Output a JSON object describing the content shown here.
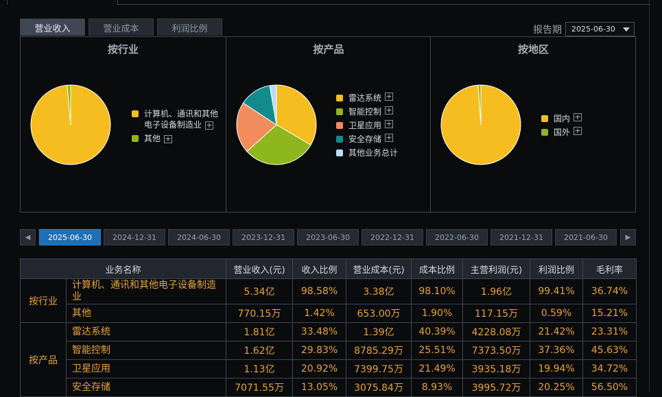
{
  "tabs": [
    {
      "label": "营业收入",
      "active": true
    },
    {
      "label": "营业成本",
      "active": false
    },
    {
      "label": "利润比例",
      "active": false
    }
  ],
  "report_period": {
    "label": "报告期",
    "value": "2025-06-30"
  },
  "panels": [
    {
      "title": "按行业",
      "slices": [
        {
          "name": "计算机、通讯和其他电子设备制造业",
          "value": 98.58,
          "color": "#f5bd1f"
        },
        {
          "name": "其他",
          "value": 1.42,
          "color": "#8db71c"
        }
      ],
      "legend": [
        {
          "label_line1": "计算机、通讯和其他",
          "label_line2": "电子设备制造业",
          "plus": true,
          "color": "#f5bd1f"
        },
        {
          "label_line1": "其他",
          "label_line2": "",
          "plus": true,
          "color": "#8db71c"
        }
      ]
    },
    {
      "title": "按产品",
      "slices": [
        {
          "name": "雷达系统",
          "value": 33.48,
          "color": "#f5bd1f"
        },
        {
          "name": "智能控制",
          "value": 29.83,
          "color": "#8db71c"
        },
        {
          "name": "卫星应用",
          "value": 20.92,
          "color": "#f28c5c"
        },
        {
          "name": "安全存储",
          "value": 13.05,
          "color": "#128b8c"
        },
        {
          "name": "其他业务总计",
          "value": 2.72,
          "color": "#b6dcf6"
        }
      ],
      "legend": [
        {
          "label": "雷达系统",
          "plus": true,
          "color": "#f5bd1f"
        },
        {
          "label": "智能控制",
          "plus": true,
          "color": "#8db71c"
        },
        {
          "label": "卫星应用",
          "plus": true,
          "color": "#f28c5c"
        },
        {
          "label": "安全存储",
          "plus": true,
          "color": "#128b8c"
        },
        {
          "label": "其他业务总计",
          "plus": false,
          "color": "#b6dcf6"
        }
      ]
    },
    {
      "title": "按地区",
      "slices": [
        {
          "name": "国内",
          "value": 98.9,
          "color": "#f5bd1f"
        },
        {
          "name": "国外",
          "value": 1.1,
          "color": "#8db71c"
        }
      ],
      "legend": [
        {
          "label": "国内",
          "plus": true,
          "color": "#f5bd1f"
        },
        {
          "label": "国外",
          "plus": true,
          "color": "#8db71c"
        }
      ]
    }
  ],
  "date_tabs": [
    "2025-06-30",
    "2024-12-31",
    "2024-06-30",
    "2023-12-31",
    "2023-06-30",
    "2022-12-31",
    "2022-06-30",
    "2021-12-31",
    "2021-06-30"
  ],
  "active_date": "2025-06-30",
  "nav": {
    "prev": "◀",
    "next": "▶"
  },
  "table": {
    "headers": [
      "业务名称",
      "营业收入(元)",
      "收入比例",
      "营业成本(元)",
      "成本比例",
      "主营利润(元)",
      "利润比例",
      "毛利率"
    ],
    "groups": [
      {
        "category": "按行业",
        "rows": [
          [
            "计算机、通讯和其他电子设备制造业",
            "5.34亿",
            "98.58%",
            "3.38亿",
            "98.10%",
            "1.96亿",
            "99.41%",
            "36.74%"
          ],
          [
            "其他",
            "770.15万",
            "1.42%",
            "653.00万",
            "1.90%",
            "117.15万",
            "0.59%",
            "15.21%"
          ]
        ]
      },
      {
        "category": "按产品",
        "rows": [
          [
            "雷达系统",
            "1.81亿",
            "33.48%",
            "1.39亿",
            "40.39%",
            "4228.08万",
            "21.42%",
            "23.31%"
          ],
          [
            "智能控制",
            "1.62亿",
            "29.83%",
            "8785.29万",
            "25.51%",
            "7373.50万",
            "37.36%",
            "45.63%"
          ],
          [
            "卫星应用",
            "1.13亿",
            "20.92%",
            "7399.75万",
            "21.49%",
            "3935.18万",
            "19.94%",
            "34.72%"
          ],
          [
            "安全存储",
            "7071.55万",
            "13.05%",
            "3075.84万",
            "8.93%",
            "3995.72万",
            "20.25%",
            "56.50%"
          ]
        ]
      }
    ]
  }
}
